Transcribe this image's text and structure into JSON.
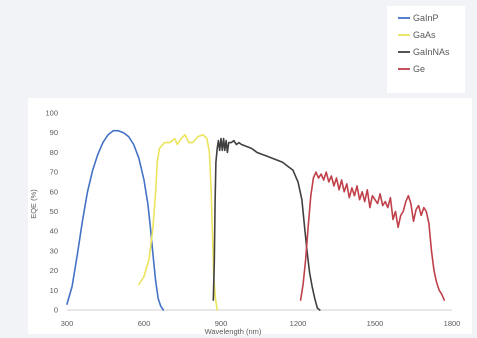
{
  "chart_data": {
    "type": "line",
    "title": "",
    "xlabel": "Wavelength (nm)",
    "ylabel": "EQE (%)",
    "xlim": [
      300,
      1800
    ],
    "ylim": [
      0,
      100
    ],
    "xticks": [
      300,
      600,
      900,
      1200,
      1500,
      1800
    ],
    "yticks": [
      0,
      10,
      20,
      30,
      40,
      50,
      60,
      70,
      80,
      90,
      100
    ],
    "grid": false,
    "legend_position": "top-right",
    "series": [
      {
        "name": "GaInP",
        "color": "#4472c4",
        "points": [
          [
            300,
            3
          ],
          [
            320,
            12
          ],
          [
            340,
            28
          ],
          [
            360,
            45
          ],
          [
            380,
            60
          ],
          [
            400,
            71
          ],
          [
            420,
            79
          ],
          [
            440,
            85
          ],
          [
            460,
            89
          ],
          [
            480,
            91
          ],
          [
            500,
            91
          ],
          [
            520,
            90
          ],
          [
            540,
            88
          ],
          [
            560,
            84
          ],
          [
            580,
            77
          ],
          [
            600,
            66
          ],
          [
            615,
            54
          ],
          [
            625,
            42
          ],
          [
            635,
            28
          ],
          [
            645,
            15
          ],
          [
            655,
            6
          ],
          [
            665,
            2
          ],
          [
            675,
            0
          ]
        ]
      },
      {
        "name": "GaAs",
        "color": "#ebe45c",
        "points": [
          [
            580,
            13
          ],
          [
            600,
            17
          ],
          [
            620,
            26
          ],
          [
            635,
            42
          ],
          [
            645,
            60
          ],
          [
            652,
            75
          ],
          [
            660,
            82
          ],
          [
            680,
            85
          ],
          [
            700,
            85
          ],
          [
            720,
            87
          ],
          [
            730,
            84
          ],
          [
            745,
            87
          ],
          [
            760,
            89
          ],
          [
            775,
            85
          ],
          [
            790,
            85
          ],
          [
            810,
            88
          ],
          [
            830,
            89
          ],
          [
            845,
            87
          ],
          [
            855,
            80
          ],
          [
            862,
            60
          ],
          [
            867,
            38
          ],
          [
            872,
            16
          ],
          [
            878,
            6
          ],
          [
            885,
            0
          ]
        ]
      },
      {
        "name": "GaInNAs",
        "color": "#404040",
        "points": [
          [
            870,
            5
          ],
          [
            874,
            24
          ],
          [
            877,
            55
          ],
          [
            880,
            75
          ],
          [
            885,
            82
          ],
          [
            890,
            86
          ],
          [
            895,
            81
          ],
          [
            900,
            87
          ],
          [
            905,
            81
          ],
          [
            910,
            87
          ],
          [
            915,
            81
          ],
          [
            920,
            86
          ],
          [
            925,
            80
          ],
          [
            930,
            85
          ],
          [
            940,
            85
          ],
          [
            950,
            86
          ],
          [
            960,
            84
          ],
          [
            970,
            85
          ],
          [
            980,
            84
          ],
          [
            1000,
            83
          ],
          [
            1020,
            82
          ],
          [
            1040,
            80
          ],
          [
            1060,
            79
          ],
          [
            1080,
            78
          ],
          [
            1100,
            77
          ],
          [
            1120,
            76
          ],
          [
            1140,
            75
          ],
          [
            1160,
            73
          ],
          [
            1180,
            71
          ],
          [
            1200,
            65
          ],
          [
            1215,
            56
          ],
          [
            1225,
            43
          ],
          [
            1235,
            30
          ],
          [
            1245,
            19
          ],
          [
            1255,
            12
          ],
          [
            1265,
            6
          ],
          [
            1275,
            1
          ],
          [
            1285,
            0
          ]
        ]
      },
      {
        "name": "Ge",
        "color": "#c0404a",
        "points": [
          [
            1210,
            5
          ],
          [
            1220,
            13
          ],
          [
            1230,
            26
          ],
          [
            1240,
            43
          ],
          [
            1250,
            58
          ],
          [
            1260,
            67
          ],
          [
            1270,
            70
          ],
          [
            1280,
            67
          ],
          [
            1290,
            69
          ],
          [
            1300,
            66
          ],
          [
            1310,
            70
          ],
          [
            1320,
            65
          ],
          [
            1330,
            68
          ],
          [
            1340,
            63
          ],
          [
            1350,
            67
          ],
          [
            1360,
            61
          ],
          [
            1370,
            66
          ],
          [
            1380,
            60
          ],
          [
            1390,
            64
          ],
          [
            1400,
            57
          ],
          [
            1410,
            62
          ],
          [
            1420,
            58
          ],
          [
            1430,
            63
          ],
          [
            1440,
            56
          ],
          [
            1450,
            60
          ],
          [
            1460,
            55
          ],
          [
            1470,
            61
          ],
          [
            1480,
            52
          ],
          [
            1490,
            58
          ],
          [
            1500,
            56
          ],
          [
            1510,
            54
          ],
          [
            1520,
            59
          ],
          [
            1530,
            53
          ],
          [
            1540,
            55
          ],
          [
            1550,
            52
          ],
          [
            1560,
            57
          ],
          [
            1570,
            46
          ],
          [
            1580,
            50
          ],
          [
            1590,
            42
          ],
          [
            1600,
            48
          ],
          [
            1610,
            50
          ],
          [
            1620,
            55
          ],
          [
            1630,
            58
          ],
          [
            1640,
            54
          ],
          [
            1650,
            45
          ],
          [
            1660,
            51
          ],
          [
            1670,
            53
          ],
          [
            1680,
            48
          ],
          [
            1690,
            52
          ],
          [
            1700,
            50
          ],
          [
            1710,
            44
          ],
          [
            1720,
            30
          ],
          [
            1730,
            20
          ],
          [
            1740,
            14
          ],
          [
            1750,
            10
          ],
          [
            1760,
            8
          ],
          [
            1770,
            5
          ]
        ]
      }
    ]
  }
}
